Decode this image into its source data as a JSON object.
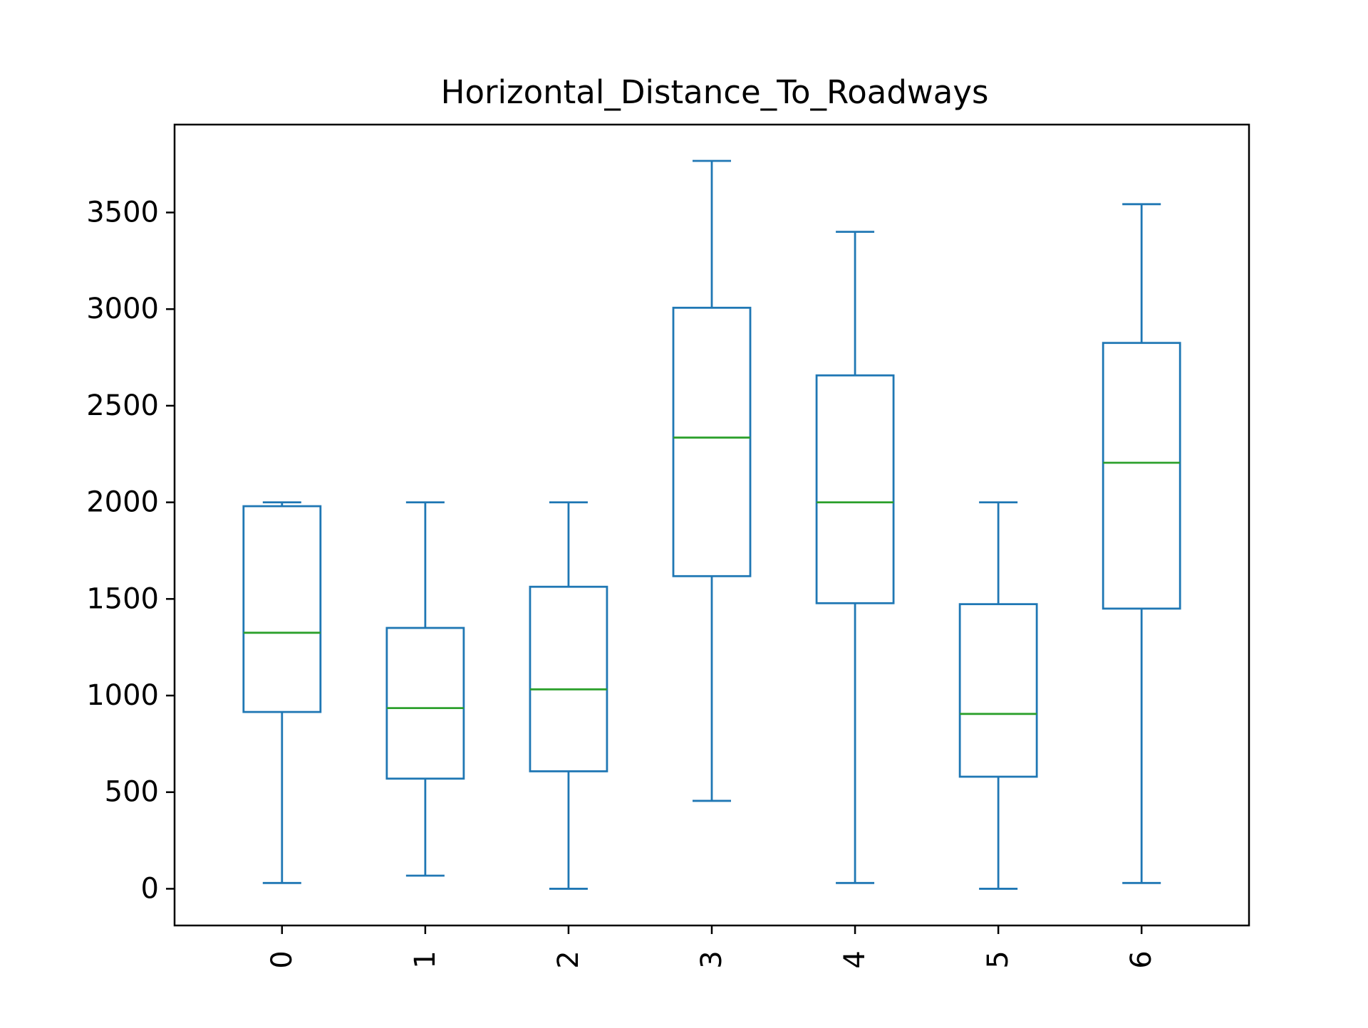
{
  "chart_data": {
    "type": "box",
    "title": "Horizontal_Distance_To_Roadways",
    "xlabel": "",
    "ylabel": "",
    "categories": [
      "0",
      "1",
      "2",
      "3",
      "4",
      "5",
      "6"
    ],
    "boxes": [
      {
        "whisker_low": 30,
        "q1": 915,
        "median": 1325,
        "q3": 1980,
        "whisker_high": 2000
      },
      {
        "whisker_low": 68,
        "q1": 570,
        "median": 935,
        "q3": 1350,
        "whisker_high": 2000
      },
      {
        "whisker_low": 0,
        "q1": 608,
        "median": 1032,
        "q3": 1563,
        "whisker_high": 2000
      },
      {
        "whisker_low": 455,
        "q1": 1618,
        "median": 2335,
        "q3": 3007,
        "whisker_high": 3767
      },
      {
        "whisker_low": 30,
        "q1": 1478,
        "median": 2000,
        "q3": 2657,
        "whisker_high": 3400
      },
      {
        "whisker_low": 0,
        "q1": 580,
        "median": 905,
        "q3": 1473,
        "whisker_high": 2000
      },
      {
        "whisker_low": 30,
        "q1": 1450,
        "median": 2205,
        "q3": 2825,
        "whisker_high": 3543
      }
    ],
    "yticks": [
      0,
      500,
      1000,
      1500,
      2000,
      2500,
      3000,
      3500
    ],
    "ylim": [
      -190,
      3955
    ],
    "grid": false,
    "colors": {
      "box": "#1f77b4",
      "median": "#2ca02c",
      "axes": "#000000"
    }
  }
}
